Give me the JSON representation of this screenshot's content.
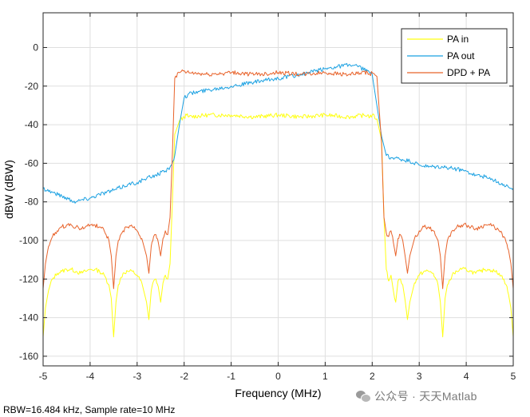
{
  "chart_data": {
    "type": "line",
    "title": "",
    "xlabel": "Frequency (MHz)",
    "ylabel": "dBW (dBW)",
    "xlim": [
      -5,
      5
    ],
    "ylim": [
      -165,
      18
    ],
    "xticks": [
      -5,
      -4,
      -3,
      -2,
      -1,
      0,
      1,
      2,
      3,
      4,
      5
    ],
    "yticks": [
      -160,
      -140,
      -120,
      -100,
      -80,
      -60,
      -40,
      -20,
      0
    ],
    "grid": true,
    "legend_position": "top-right",
    "series": [
      {
        "name": "PA in",
        "color": "#ffff11",
        "x": [
          -5,
          -4.95,
          -4.9,
          -4.85,
          -4.8,
          -4.7,
          -4.6,
          -4.5,
          -4.4,
          -4.3,
          -4.2,
          -4.1,
          -4.0,
          -3.9,
          -3.8,
          -3.7,
          -3.6,
          -3.55,
          -3.5,
          -3.45,
          -3.4,
          -3.3,
          -3.2,
          -3.1,
          -3.0,
          -2.9,
          -2.8,
          -2.75,
          -2.7,
          -2.65,
          -2.6,
          -2.55,
          -2.5,
          -2.45,
          -2.4,
          -2.35,
          -2.3,
          -2.25,
          -2.2,
          -2.1,
          -2.0,
          -1.95,
          -1.9,
          -1.5,
          -1.0,
          -0.5,
          0,
          0.5,
          1.0,
          1.5,
          1.9,
          1.95,
          2.0,
          2.1,
          2.2,
          2.25,
          2.3,
          2.35,
          2.4,
          2.45,
          2.5,
          2.55,
          2.6,
          2.65,
          2.7,
          2.75,
          2.8,
          2.9,
          3.0,
          3.1,
          3.2,
          3.3,
          3.4,
          3.45,
          3.5,
          3.55,
          3.6,
          3.7,
          3.8,
          3.9,
          4.0,
          4.1,
          4.2,
          4.3,
          4.4,
          4.5,
          4.6,
          4.7,
          4.8,
          4.85,
          4.9,
          4.95,
          5.0
        ],
        "y": [
          -150,
          -135,
          -128,
          -123,
          -120,
          -117,
          -116,
          -115,
          -115,
          -116,
          -117,
          -116,
          -115,
          -115,
          -116,
          -118,
          -123,
          -130,
          -150,
          -132,
          -123,
          -117,
          -116,
          -116,
          -118,
          -122,
          -132,
          -141,
          -126,
          -121,
          -120,
          -124,
          -132,
          -122,
          -118,
          -120,
          -112,
          -80,
          -45,
          -38,
          -36,
          -35,
          -36,
          -35,
          -35,
          -36,
          -35,
          -36,
          -35,
          -36,
          -35,
          -36,
          -35,
          -37,
          -48,
          -88,
          -115,
          -121,
          -118,
          -126,
          -132,
          -121,
          -120,
          -123,
          -131,
          -141,
          -132,
          -122,
          -118,
          -116,
          -116,
          -117,
          -123,
          -132,
          -150,
          -130,
          -123,
          -118,
          -116,
          -115,
          -115,
          -116,
          -117,
          -116,
          -115,
          -115,
          -116,
          -117,
          -120,
          -123,
          -128,
          -135,
          -150
        ]
      },
      {
        "name": "PA out",
        "color": "#1ba1e2",
        "x": [
          -5,
          -4.8,
          -4.6,
          -4.4,
          -4.3,
          -4.2,
          -4.0,
          -3.8,
          -3.5,
          -3.2,
          -3.0,
          -2.8,
          -2.6,
          -2.4,
          -2.3,
          -2.2,
          -2.1,
          -2.0,
          -1.9,
          -1.5,
          -1.0,
          -0.5,
          0,
          0.5,
          1.0,
          1.2,
          1.5,
          1.7,
          1.9,
          2.0,
          2.1,
          2.2,
          2.3,
          2.4,
          2.6,
          2.8,
          3.0,
          3.2,
          3.5,
          3.8,
          4.0,
          4.2,
          4.4,
          4.6,
          4.8,
          5.0
        ],
        "y": [
          -73,
          -75,
          -77,
          -79,
          -80,
          -79,
          -78,
          -76,
          -74,
          -71,
          -70,
          -68,
          -66,
          -64,
          -62,
          -56,
          -40,
          -26,
          -24,
          -22,
          -20,
          -18,
          -16,
          -14,
          -11,
          -10,
          -9,
          -10,
          -12,
          -14,
          -30,
          -46,
          -56,
          -57,
          -58,
          -59,
          -61,
          -62,
          -62,
          -63,
          -64,
          -66,
          -67,
          -69,
          -71,
          -73
        ]
      },
      {
        "name": "DPD + PA",
        "color": "#e8632b",
        "x": [
          -5,
          -4.95,
          -4.9,
          -4.85,
          -4.8,
          -4.7,
          -4.6,
          -4.5,
          -4.4,
          -4.3,
          -4.2,
          -4.1,
          -4.0,
          -3.9,
          -3.8,
          -3.7,
          -3.6,
          -3.55,
          -3.5,
          -3.45,
          -3.4,
          -3.3,
          -3.2,
          -3.1,
          -3.0,
          -2.9,
          -2.8,
          -2.75,
          -2.7,
          -2.65,
          -2.6,
          -2.55,
          -2.5,
          -2.45,
          -2.4,
          -2.35,
          -2.3,
          -2.25,
          -2.2,
          -2.1,
          -2.0,
          -1.95,
          -1.9,
          -1.5,
          -1.0,
          -0.5,
          0,
          0.5,
          1.0,
          1.5,
          1.9,
          1.95,
          2.0,
          2.1,
          2.2,
          2.25,
          2.3,
          2.35,
          2.4,
          2.45,
          2.5,
          2.55,
          2.6,
          2.65,
          2.7,
          2.75,
          2.8,
          2.9,
          3.0,
          3.1,
          3.2,
          3.3,
          3.4,
          3.45,
          3.5,
          3.55,
          3.6,
          3.7,
          3.8,
          3.9,
          4.0,
          4.1,
          4.2,
          4.3,
          4.4,
          4.5,
          4.6,
          4.7,
          4.8,
          4.85,
          4.9,
          4.95,
          5.0
        ],
        "y": [
          -125,
          -112,
          -105,
          -101,
          -98,
          -95,
          -93,
          -92,
          -92,
          -93,
          -94,
          -93,
          -92,
          -92,
          -93,
          -95,
          -100,
          -108,
          -125,
          -108,
          -100,
          -95,
          -93,
          -93,
          -95,
          -99,
          -108,
          -117,
          -103,
          -98,
          -97,
          -101,
          -108,
          -99,
          -95,
          -97,
          -88,
          -55,
          -16,
          -13,
          -12,
          -13,
          -13,
          -14,
          -13,
          -14,
          -13,
          -14,
          -13,
          -14,
          -13,
          -14,
          -13,
          -15,
          -50,
          -88,
          -96,
          -98,
          -95,
          -101,
          -108,
          -99,
          -97,
          -100,
          -108,
          -117,
          -108,
          -99,
          -95,
          -93,
          -93,
          -95,
          -100,
          -108,
          -125,
          -108,
          -100,
          -95,
          -93,
          -92,
          -92,
          -93,
          -94,
          -93,
          -92,
          -92,
          -93,
          -95,
          -98,
          -101,
          -105,
          -112,
          -125
        ]
      }
    ]
  },
  "footer_text": "RBW=16.484 kHz, Sample rate=10 MHz",
  "watermark_text": "公众号 · 天天Matlab"
}
